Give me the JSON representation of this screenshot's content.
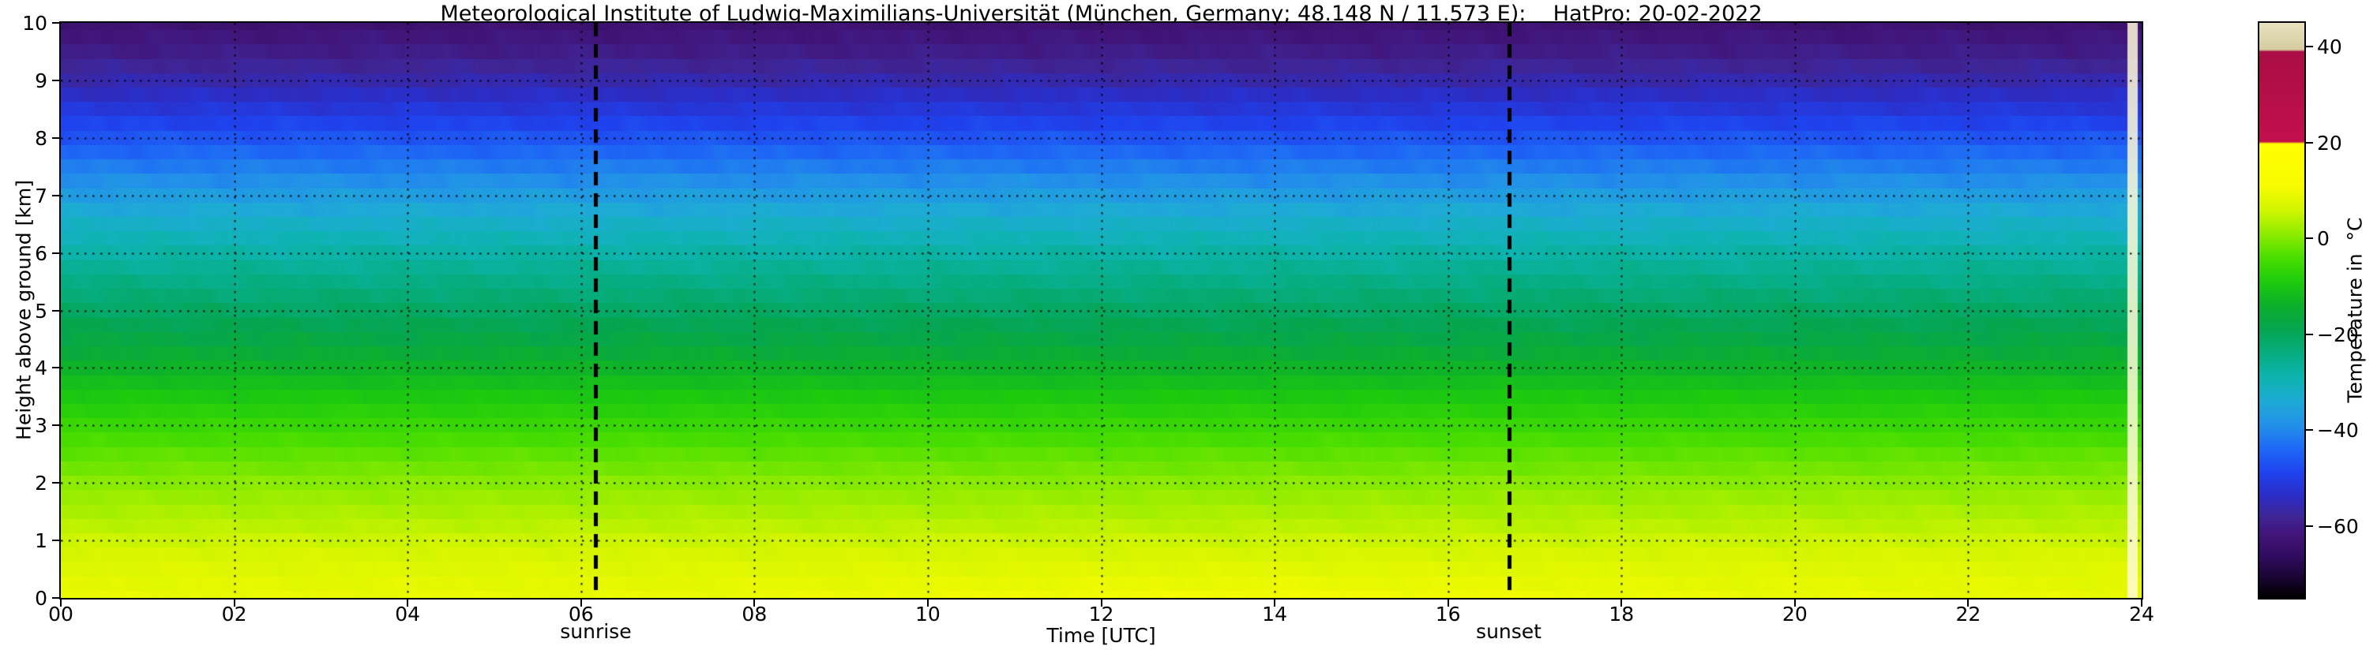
{
  "title": "Meteorological Institute of Ludwig-Maximilians-Universität (München, Germany; 48.148 N / 11.573 E):    HatPro: 20-02-2022",
  "axes": {
    "xlabel": "Time [UTC]",
    "ylabel": "Height above ground [km]",
    "x_ticks": [
      {
        "v": 0,
        "label": "00"
      },
      {
        "v": 2,
        "label": "02"
      },
      {
        "v": 4,
        "label": "04"
      },
      {
        "v": 6,
        "label": "06"
      },
      {
        "v": 8,
        "label": "08"
      },
      {
        "v": 10,
        "label": "10"
      },
      {
        "v": 12,
        "label": "12"
      },
      {
        "v": 14,
        "label": "14"
      },
      {
        "v": 16,
        "label": "16"
      },
      {
        "v": 18,
        "label": "18"
      },
      {
        "v": 20,
        "label": "20"
      },
      {
        "v": 22,
        "label": "22"
      },
      {
        "v": 24,
        "label": "24"
      }
    ],
    "y_ticks": [
      {
        "v": 0,
        "label": "0"
      },
      {
        "v": 1,
        "label": "1"
      },
      {
        "v": 2,
        "label": "2"
      },
      {
        "v": 3,
        "label": "3"
      },
      {
        "v": 4,
        "label": "4"
      },
      {
        "v": 5,
        "label": "5"
      },
      {
        "v": 6,
        "label": "6"
      },
      {
        "v": 7,
        "label": "7"
      },
      {
        "v": 8,
        "label": "8"
      },
      {
        "v": 9,
        "label": "9"
      },
      {
        "v": 10,
        "label": "10"
      }
    ]
  },
  "annotations": {
    "sunrise": {
      "t": 6.17,
      "label": "sunrise"
    },
    "sunset": {
      "t": 16.7,
      "label": "sunset"
    }
  },
  "colorbar": {
    "label": "Temperature in  °C",
    "vmin": -75,
    "vmax": 45,
    "ticks": [
      {
        "v": 40,
        "label": "40"
      },
      {
        "v": 20,
        "label": "20"
      },
      {
        "v": 0,
        "label": "0"
      },
      {
        "v": -20,
        "label": "−20"
      },
      {
        "v": -40,
        "label": "−40"
      },
      {
        "v": -60,
        "label": "−60"
      }
    ]
  },
  "chart_data": {
    "type": "heatmap",
    "title": "Meteorological Institute of Ludwig-Maximilians-Universität (München, Germany; 48.148 N / 11.573 E):    HatPro: 20-02-2022",
    "xlabel": "Time [UTC]",
    "ylabel": "Height above ground [km]",
    "x_range": [
      0,
      24
    ],
    "y_range": [
      0,
      10
    ],
    "value_label": "Temperature in °C",
    "vmin": -75,
    "vmax": 45,
    "sunrise_utc": 6.17,
    "sunset_utc": 16.7,
    "grid": true,
    "band_km": 0.25,
    "profile": {
      "heights_km": [
        0,
        0.4,
        0.8,
        1.2,
        1.6,
        2,
        2.5,
        3,
        3.5,
        4,
        4.5,
        5,
        5.5,
        6,
        6.5,
        7,
        7.5,
        8,
        8.5,
        9,
        9.5,
        10
      ],
      "temps_c": [
        9,
        8,
        6.5,
        4.5,
        2.5,
        0.5,
        -2.5,
        -6,
        -9.5,
        -13.5,
        -17.5,
        -21,
        -24.5,
        -28,
        -32,
        -36.5,
        -41.5,
        -46.5,
        -51.5,
        -56,
        -60,
        -63
      ]
    },
    "colormap_stops": [
      [
        -75,
        "#000000"
      ],
      [
        -71,
        "#190530"
      ],
      [
        -67,
        "#2e0a5a"
      ],
      [
        -62,
        "#411478"
      ],
      [
        -58,
        "#3f2596"
      ],
      [
        -54,
        "#2d2cc3"
      ],
      [
        -49,
        "#1f42ee"
      ],
      [
        -44,
        "#1e68f5"
      ],
      [
        -39,
        "#2290e9"
      ],
      [
        -34,
        "#1eaad6"
      ],
      [
        -29,
        "#0db4b0"
      ],
      [
        -24,
        "#06ad80"
      ],
      [
        -19,
        "#05a551"
      ],
      [
        -14,
        "#0cb02c"
      ],
      [
        -9,
        "#1ecb0d"
      ],
      [
        -4,
        "#4ade00"
      ],
      [
        1,
        "#8fec00"
      ],
      [
        6,
        "#d2f500"
      ],
      [
        11,
        "#f8fc00"
      ],
      [
        19.8,
        "#ffff00"
      ],
      [
        20.2,
        "#c30f4e"
      ],
      [
        39,
        "#a90e44"
      ],
      [
        39.4,
        "#d5cd9e"
      ],
      [
        45,
        "#e8e1c0"
      ]
    ],
    "noise_amp_c": {
      "below_4km": 0.6,
      "above_4km": 1.1
    },
    "surface_warm_peak_utc": 13.5,
    "surface_warm_amp_c": 1.3,
    "missing_data_stripe_utc": [
      23.84,
      23.95
    ]
  }
}
